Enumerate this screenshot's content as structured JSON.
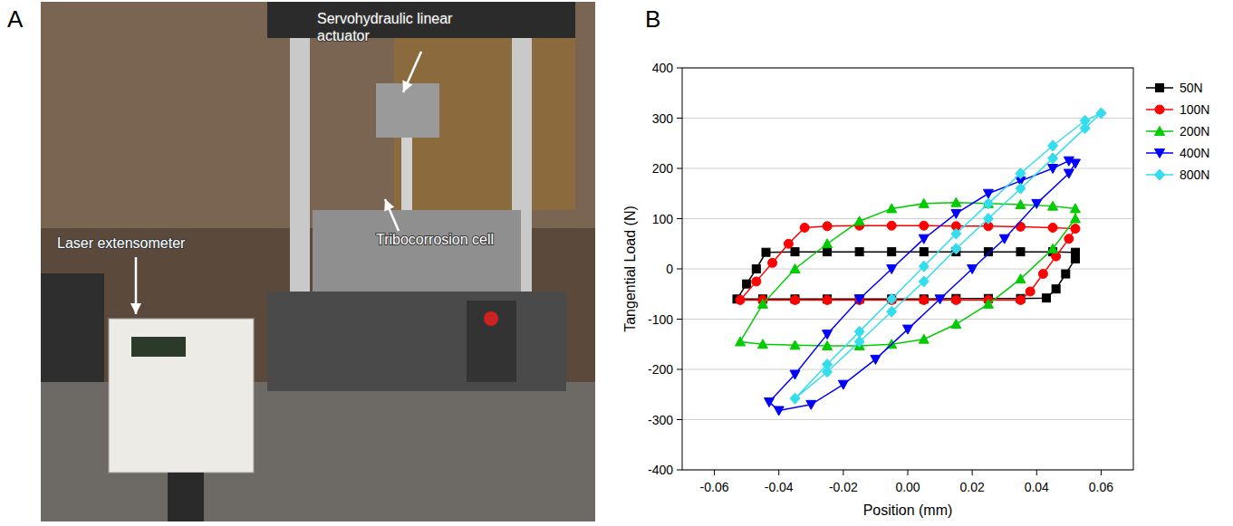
{
  "panel_labels": [
    "A",
    "B"
  ],
  "photo": {
    "labels": [
      "Servohydraulic linear actuator",
      "Laser extensometer",
      "Tribocorrosion cell"
    ]
  },
  "chart_data": {
    "type": "line",
    "x_label": "Position (mm)",
    "y_label": "Tangential Load (N)",
    "xlim": [
      -0.07,
      0.07
    ],
    "xticks": [
      -0.06,
      -0.04,
      -0.02,
      {
        "value": 0,
        "label": "0.00"
      },
      0.02,
      0.04,
      0.06
    ],
    "ylim": [
      -400,
      400
    ],
    "yticks": [
      -400,
      -300,
      -200,
      -100,
      0,
      100,
      200,
      300,
      400
    ],
    "grid": "y",
    "legend": "right",
    "series": [
      {
        "name": "50N",
        "color": "#000000",
        "marker": "square",
        "x": [
          -0.053,
          -0.05,
          -0.047,
          -0.044,
          -0.035,
          -0.025,
          -0.015,
          -0.005,
          0.005,
          0.015,
          0.025,
          0.035,
          0.045,
          0.052,
          0.052,
          0.049,
          0.046,
          0.043,
          0.035,
          0.025,
          0.015,
          0.005,
          -0.005,
          -0.015,
          -0.025,
          -0.035,
          -0.045
        ],
        "values": [
          -60,
          -30,
          0,
          33,
          34,
          34,
          34,
          34,
          34,
          34,
          34,
          34,
          34,
          33,
          20,
          -10,
          -40,
          -58,
          -59,
          -59,
          -59,
          -60,
          -60,
          -60,
          -60,
          -60,
          -60
        ]
      },
      {
        "name": "100N",
        "color": "#ff0000",
        "marker": "circle",
        "x": [
          -0.052,
          -0.047,
          -0.042,
          -0.037,
          -0.032,
          -0.025,
          -0.015,
          -0.005,
          0.005,
          0.015,
          0.025,
          0.035,
          0.045,
          0.052,
          0.05,
          0.046,
          0.042,
          0.038,
          0.035,
          0.025,
          0.015,
          0.005,
          -0.005,
          -0.015,
          -0.025,
          -0.035,
          -0.045
        ],
        "values": [
          -62,
          -25,
          12,
          50,
          82,
          85,
          86,
          86,
          86,
          85,
          85,
          84,
          82,
          80,
          60,
          25,
          -10,
          -45,
          -62,
          -62,
          -62,
          -62,
          -62,
          -62,
          -62,
          -62,
          -62
        ]
      },
      {
        "name": "200N",
        "color": "#00cc00",
        "marker": "triangle-up",
        "x": [
          -0.052,
          -0.045,
          -0.035,
          -0.025,
          -0.015,
          -0.005,
          0.005,
          0.015,
          0.025,
          0.035,
          0.045,
          0.052,
          0.052,
          0.045,
          0.035,
          0.025,
          0.015,
          0.005,
          -0.005,
          -0.015,
          -0.025,
          -0.035,
          -0.045
        ],
        "values": [
          -145,
          -150,
          -152,
          -153,
          -153,
          -150,
          -140,
          -110,
          -70,
          -20,
          40,
          100,
          120,
          125,
          128,
          130,
          132,
          130,
          120,
          95,
          50,
          0,
          -70
        ]
      },
      {
        "name": "400N",
        "color": "#0000ff",
        "marker": "triangle-down",
        "x": [
          -0.043,
          -0.035,
          -0.025,
          -0.015,
          -0.005,
          0.005,
          0.015,
          0.025,
          0.035,
          0.045,
          0.05,
          0.052,
          0.05,
          0.04,
          0.03,
          0.02,
          0.01,
          0,
          -0.01,
          -0.02,
          -0.03,
          -0.04
        ],
        "values": [
          -265,
          -210,
          -130,
          -60,
          0,
          60,
          110,
          150,
          175,
          200,
          215,
          210,
          190,
          130,
          60,
          0,
          -60,
          -120,
          -180,
          -230,
          -270,
          -282
        ]
      },
      {
        "name": "800N",
        "color": "#33ddee",
        "marker": "diamond",
        "x": [
          -0.035,
          -0.025,
          -0.015,
          -0.005,
          0.005,
          0.015,
          0.025,
          0.035,
          0.045,
          0.055,
          0.06,
          0.055,
          0.045,
          0.035,
          0.025,
          0.015,
          0.005,
          -0.005,
          -0.015,
          -0.025
        ],
        "values": [
          -258,
          -190,
          -125,
          -60,
          5,
          70,
          130,
          190,
          245,
          295,
          310,
          280,
          220,
          160,
          100,
          40,
          -25,
          -85,
          -145,
          -205
        ]
      }
    ]
  }
}
